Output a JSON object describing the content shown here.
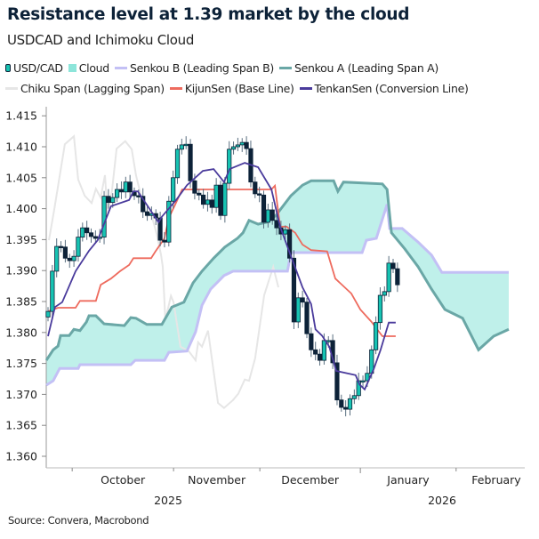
{
  "chart_data": {
    "type": "candlestick-ichimoku",
    "title": "Resistance level at 1.39 market by the cloud",
    "subtitle": "USDCAD and Ichimoku Cloud",
    "source": "Source: Convera, Macrobond",
    "ylim": [
      1.358,
      1.416
    ],
    "y_ticks": [
      "1.360",
      "1.365",
      "1.370",
      "1.375",
      "1.380",
      "1.385",
      "1.390",
      "1.395",
      "1.400",
      "1.405",
      "1.410",
      "1.415"
    ],
    "x_months": [
      "October",
      "November",
      "December",
      "January",
      "February"
    ],
    "x_years": [
      "2025",
      "2026"
    ],
    "grid": false,
    "legend_position": "top",
    "legend": [
      {
        "name": "USD/CAD",
        "kind": "candle",
        "color": "#17c3b2"
      },
      {
        "name": "Cloud",
        "kind": "box",
        "color": "#8de5da"
      },
      {
        "name": "Senkou B (Leading Span B)",
        "kind": "line",
        "color": "#c3c0f5"
      },
      {
        "name": "Senkou A (Leading Span A)",
        "kind": "line",
        "color": "#6aa7a6"
      },
      {
        "name": "Chiku Span (Lagging Span)",
        "kind": "line",
        "color": "#e6e6e6"
      },
      {
        "name": "KijunSen (Base Line)",
        "kind": "line",
        "color": "#ee6b5e"
      },
      {
        "name": "TenkanSen (Conversion Line)",
        "kind": "line",
        "color": "#4a3b9c"
      }
    ],
    "colors": {
      "bull": "#17c3b2",
      "bear": "#0d2238",
      "cloud": "#bff0ea"
    },
    "usdcad_close": [
      1.3834,
      1.3899,
      1.3939,
      1.3938,
      1.392,
      1.3916,
      1.3923,
      1.3954,
      1.3969,
      1.3961,
      1.3955,
      1.3952,
      1.3954,
      1.402,
      1.401,
      1.4018,
      1.4031,
      1.4027,
      1.4043,
      1.4027,
      1.4021,
      1.402,
      1.3995,
      1.3989,
      1.3992,
      1.3985,
      1.3949,
      1.3946,
      1.4012,
      1.405,
      1.4096,
      1.4103,
      1.4104,
      1.4045,
      1.4025,
      1.4022,
      1.4007,
      1.4014,
      1.4002,
      1.4038,
      1.3989,
      1.4041,
      1.4096,
      1.41,
      1.4103,
      1.4107,
      1.4097,
      1.4043,
      1.4024,
      1.4022,
      1.3978,
      1.3998,
      1.3981,
      1.3969,
      1.3959,
      1.3966,
      1.392,
      1.3817,
      1.3856,
      1.3849,
      1.3798,
      1.3772,
      1.3765,
      1.3755,
      1.3787,
      1.3787,
      1.3751,
      1.3691,
      1.3679,
      1.3676,
      1.3693,
      1.3698,
      1.3722,
      1.3722,
      1.3734,
      1.3772,
      1.3816,
      1.386,
      1.3866,
      1.3912,
      1.3903,
      1.3877
    ],
    "usdcad_first_open": 1.3825,
    "tenkan": [
      [
        0,
        1.3794
      ],
      [
        1.6,
        1.3841
      ],
      [
        3.3,
        1.3849
      ],
      [
        6.4,
        1.3899
      ],
      [
        9.5,
        1.3932
      ],
      [
        11.5,
        1.3949
      ],
      [
        14.6,
        1.4004
      ],
      [
        18.8,
        1.4014
      ],
      [
        19.8,
        1.4028
      ],
      [
        20.8,
        1.4028
      ],
      [
        23.5,
        1.4
      ],
      [
        25.6,
        1.3978
      ],
      [
        26.4,
        1.3987
      ],
      [
        29.7,
        1.4014
      ],
      [
        32.2,
        1.4038
      ],
      [
        35.9,
        1.4061
      ],
      [
        38.4,
        1.4064
      ],
      [
        40.8,
        1.4043
      ],
      [
        42.1,
        1.4064
      ],
      [
        45.6,
        1.4074
      ],
      [
        48.7,
        1.4067
      ],
      [
        51.8,
        1.4031
      ],
      [
        53.8,
        1.3971
      ],
      [
        55.9,
        1.3931
      ],
      [
        59,
        1.3873
      ],
      [
        61,
        1.3846
      ],
      [
        62,
        1.3805
      ],
      [
        63.5,
        1.3795
      ],
      [
        65.2,
        1.3777
      ],
      [
        66.8,
        1.3738
      ],
      [
        71.3,
        1.3731
      ],
      [
        72.2,
        1.3716
      ],
      [
        73.4,
        1.3708
      ],
      [
        75.5,
        1.3741
      ],
      [
        77.1,
        1.3772
      ],
      [
        79,
        1.3816
      ],
      [
        80.6,
        1.3816
      ]
    ],
    "kijun": [
      [
        0,
        1.3834
      ],
      [
        2.3,
        1.384
      ],
      [
        6.4,
        1.384
      ],
      [
        7.4,
        1.3851
      ],
      [
        11.1,
        1.3851
      ],
      [
        12.2,
        1.3877
      ],
      [
        14.6,
        1.3887
      ],
      [
        16.7,
        1.3899
      ],
      [
        18.8,
        1.3909
      ],
      [
        19.8,
        1.392
      ],
      [
        23.9,
        1.392
      ],
      [
        24.9,
        1.3931
      ],
      [
        27,
        1.3952
      ],
      [
        28,
        1.3985
      ],
      [
        29.5,
        1.4007
      ],
      [
        31.1,
        1.4031
      ],
      [
        51.8,
        1.4031
      ],
      [
        52.6,
        1.4037
      ],
      [
        53.8,
        1.3971
      ],
      [
        55.3,
        1.3971
      ],
      [
        57.3,
        1.3961
      ],
      [
        59,
        1.3942
      ],
      [
        61,
        1.3933
      ],
      [
        64.7,
        1.3931
      ],
      [
        66.6,
        1.3887
      ],
      [
        70.3,
        1.3863
      ],
      [
        72.4,
        1.3837
      ],
      [
        75,
        1.3817
      ],
      [
        77.5,
        1.3794
      ],
      [
        80.6,
        1.3794
      ]
    ],
    "senkou_a": [
      [
        -0.4,
        1.3755
      ],
      [
        1.2,
        1.3772
      ],
      [
        2.3,
        1.3778
      ],
      [
        2.9,
        1.3795
      ],
      [
        4.9,
        1.3795
      ],
      [
        6,
        1.3805
      ],
      [
        7.4,
        1.3803
      ],
      [
        8.9,
        1.3817
      ],
      [
        9.5,
        1.3827
      ],
      [
        11.1,
        1.3827
      ],
      [
        13,
        1.3814
      ],
      [
        17.7,
        1.3811
      ],
      [
        19.2,
        1.3824
      ],
      [
        20.4,
        1.3823
      ],
      [
        22.9,
        1.3813
      ],
      [
        26.4,
        1.3813
      ],
      [
        28.7,
        1.3841
      ],
      [
        31.5,
        1.3849
      ],
      [
        33.6,
        1.388
      ],
      [
        35.7,
        1.3899
      ],
      [
        38.4,
        1.392
      ],
      [
        41,
        1.3938
      ],
      [
        43.9,
        1.3952
      ],
      [
        45.2,
        1.3961
      ],
      [
        46.6,
        1.3981
      ],
      [
        48.7,
        1.3975
      ],
      [
        50.7,
        1.3978
      ],
      [
        52.8,
        1.3989
      ],
      [
        56.3,
        1.4021
      ],
      [
        59,
        1.4038
      ],
      [
        61,
        1.4045
      ],
      [
        66.2,
        1.4045
      ],
      [
        67.2,
        1.4028
      ],
      [
        68.5,
        1.4043
      ],
      [
        77.5,
        1.404
      ],
      [
        78.6,
        1.4031
      ],
      [
        79.6,
        1.3961
      ],
      [
        82.7,
        1.3935
      ],
      [
        85.8,
        1.3906
      ],
      [
        88.9,
        1.387
      ],
      [
        92,
        1.3837
      ],
      [
        96.1,
        1.3823
      ],
      [
        99.8,
        1.3772
      ],
      [
        103.3,
        1.3794
      ],
      [
        106.8,
        1.3805
      ]
    ],
    "senkou_b": [
      [
        -0.4,
        1.3715
      ],
      [
        1.2,
        1.3722
      ],
      [
        2.7,
        1.3742
      ],
      [
        7,
        1.3742
      ],
      [
        7.4,
        1.3748
      ],
      [
        19.2,
        1.3748
      ],
      [
        20.2,
        1.3755
      ],
      [
        27,
        1.3755
      ],
      [
        28,
        1.3768
      ],
      [
        32.2,
        1.377
      ],
      [
        34.2,
        1.3801
      ],
      [
        35.7,
        1.3844
      ],
      [
        37.7,
        1.387
      ],
      [
        40.8,
        1.3892
      ],
      [
        42.9,
        1.3899
      ],
      [
        55.5,
        1.3899
      ],
      [
        56.3,
        1.3929
      ],
      [
        72.8,
        1.3929
      ],
      [
        73.8,
        1.3949
      ],
      [
        76.1,
        1.3952
      ],
      [
        78.6,
        1.4007
      ],
      [
        79.2,
        1.3968
      ],
      [
        82.1,
        1.3968
      ],
      [
        85.8,
        1.3946
      ],
      [
        88.9,
        1.3925
      ],
      [
        91.3,
        1.3897
      ],
      [
        106.8,
        1.3897
      ]
    ],
    "chikou": [
      [
        0.2,
        1.3949
      ],
      [
        1.4,
        1.3997
      ],
      [
        3.9,
        1.4104
      ],
      [
        6,
        1.4117
      ],
      [
        7,
        1.4047
      ],
      [
        8.5,
        1.4021
      ],
      [
        10.1,
        1.4009
      ],
      [
        11.1,
        1.4032
      ],
      [
        12.2,
        1.4018
      ],
      [
        13.2,
        1.4054
      ],
      [
        13.8,
        1.3992
      ],
      [
        14.8,
        1.4028
      ],
      [
        15.9,
        1.4097
      ],
      [
        17.9,
        1.4109
      ],
      [
        19.4,
        1.4096
      ],
      [
        20.4,
        1.4054
      ],
      [
        21.4,
        1.4025
      ],
      [
        22.9,
        1.3988
      ],
      [
        23.9,
        1.3992
      ],
      [
        25.2,
        1.3959
      ],
      [
        26.2,
        1.3925
      ],
      [
        26.6,
        1.3906
      ],
      [
        27.2,
        1.382
      ],
      [
        28.5,
        1.3859
      ],
      [
        29.1,
        1.3849
      ],
      [
        30.7,
        1.3777
      ],
      [
        32.6,
        1.377
      ],
      [
        34.2,
        1.3755
      ],
      [
        34.8,
        1.3784
      ],
      [
        35.7,
        1.3777
      ],
      [
        37.1,
        1.3803
      ],
      [
        37.9,
        1.3762
      ],
      [
        39.4,
        1.3686
      ],
      [
        40.8,
        1.3678
      ],
      [
        42.9,
        1.3691
      ],
      [
        44.1,
        1.3701
      ],
      [
        45.6,
        1.3724
      ],
      [
        46.6,
        1.3722
      ],
      [
        48,
        1.3758
      ],
      [
        50.1,
        1.386
      ],
      [
        52.2,
        1.3906
      ],
      [
        53.4,
        1.3873
      ]
    ]
  }
}
